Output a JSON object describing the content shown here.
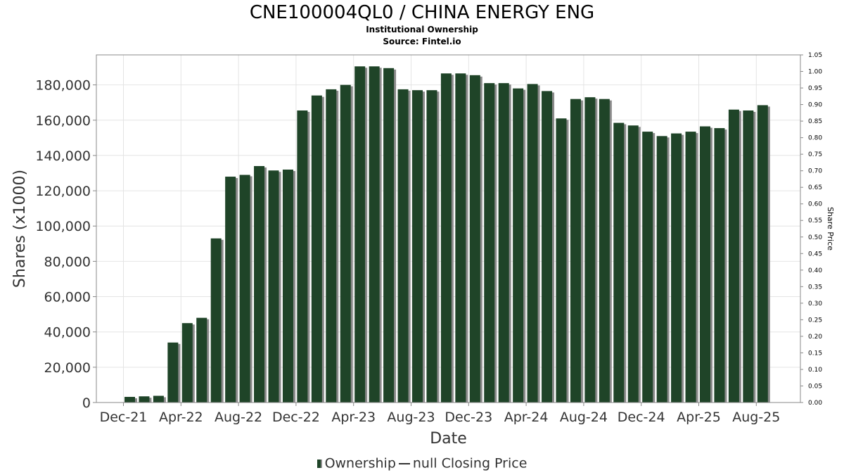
{
  "title": "CNE100004QL0 / CHINA ENERGY ENG",
  "subtitle1": "Institutional Ownership",
  "subtitle2": "Source: Fintel.io",
  "colors": {
    "bar": "#1f4428",
    "bar_shadow": "#8a8a8a",
    "grid": "#e4e4e4",
    "frame": "#888888"
  },
  "legend": {
    "ownership": "Ownership",
    "price": "null Closing Price"
  },
  "chart_data": {
    "type": "bar",
    "xlabel": "Date",
    "ylabel": "Shares (x1000)",
    "y2label": "Share Price",
    "ylim": [
      0,
      197000
    ],
    "y2lim": [
      0,
      1.05
    ],
    "yticks": [
      "0",
      "20,000",
      "40,000",
      "60,000",
      "80,000",
      "100,000",
      "120,000",
      "140,000",
      "160,000",
      "180,000"
    ],
    "ytick_values": [
      0,
      20000,
      40000,
      60000,
      80000,
      100000,
      120000,
      140000,
      160000,
      180000
    ],
    "y2ticks": [
      "0.00",
      "0.05",
      "0.10",
      "0.15",
      "0.20",
      "0.25",
      "0.30",
      "0.35",
      "0.40",
      "0.45",
      "0.50",
      "0.55",
      "0.60",
      "0.65",
      "0.70",
      "0.75",
      "0.80",
      "0.85",
      "0.90",
      "0.95",
      "1.00",
      "1.05"
    ],
    "xticks": [
      "Dec-21",
      "Apr-22",
      "Aug-22",
      "Dec-22",
      "Apr-23",
      "Aug-23",
      "Dec-23",
      "Apr-24",
      "Aug-24",
      "Dec-24",
      "Apr-25",
      "Aug-25"
    ],
    "grid": true,
    "legend_position": "bottom",
    "series": [
      {
        "name": "Ownership",
        "values": [
          3200,
          3500,
          3800,
          34000,
          45000,
          48000,
          93000,
          128000,
          129000,
          134000,
          131500,
          132000,
          165500,
          174000,
          177500,
          180000,
          190500,
          190500,
          189500,
          177500,
          177000,
          177000,
          186500,
          186500,
          185500,
          181000,
          181000,
          178000,
          180500,
          176500,
          161000,
          172000,
          173000,
          172000,
          158500,
          157000,
          153500,
          151000,
          152500,
          153500,
          156500,
          155500,
          166000,
          165500,
          168500
        ]
      }
    ]
  }
}
